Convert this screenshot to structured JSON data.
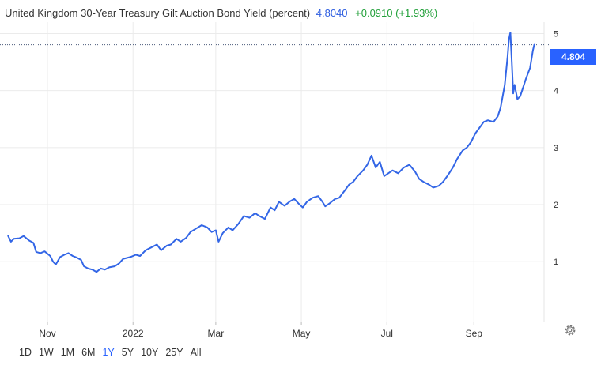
{
  "header": {
    "title": "United Kingdom 30-Year Treasury Gilt Auction Bond Yield (percent)",
    "last_value": "4.8040",
    "change": "+0.0910 (+1.93%)"
  },
  "price_tag": "4.804",
  "range_buttons": [
    "1D",
    "1W",
    "1M",
    "6M",
    "1Y",
    "5Y",
    "10Y",
    "25Y",
    "All"
  ],
  "active_range": "1Y",
  "colors": {
    "line": "#3366e6",
    "accent": "#2962ff",
    "change_positive": "#22a03a"
  },
  "icons": {
    "settings": "gear-icon"
  },
  "chart_data": {
    "type": "line",
    "title": "United Kingdom 30-Year Treasury Gilt Auction Bond Yield (percent)",
    "xlabel": "",
    "ylabel": "",
    "x_tick_labels": [
      "Nov",
      "2022",
      "Mar",
      "May",
      "Jul",
      "Sep"
    ],
    "y_tick_labels": [
      "1",
      "2",
      "3",
      "4",
      "5"
    ],
    "x_ticks": [
      "2021-11-01",
      "2022-01-01",
      "2022-03-01",
      "2022-05-01",
      "2022-07-01",
      "2022-09-01"
    ],
    "y_ticks": [
      1,
      2,
      3,
      4,
      5
    ],
    "xlim": [
      "2021-10-01",
      "2022-10-21"
    ],
    "ylim": [
      -0.05,
      5.2
    ],
    "grid": true,
    "last_value": 4.804,
    "series": [
      {
        "values": [
          [
            "2021-10-04",
            1.45
          ],
          [
            "2021-10-06",
            1.35
          ],
          [
            "2021-10-08",
            1.4
          ],
          [
            "2021-10-12",
            1.41
          ],
          [
            "2021-10-15",
            1.45
          ],
          [
            "2021-10-19",
            1.37
          ],
          [
            "2021-10-22",
            1.33
          ],
          [
            "2021-10-24",
            1.17
          ],
          [
            "2021-10-27",
            1.15
          ],
          [
            "2021-10-30",
            1.18
          ],
          [
            "2021-11-03",
            1.1
          ],
          [
            "2021-11-05",
            1.0
          ],
          [
            "2021-11-07",
            0.95
          ],
          [
            "2021-11-10",
            1.08
          ],
          [
            "2021-11-13",
            1.12
          ],
          [
            "2021-11-16",
            1.15
          ],
          [
            "2021-11-19",
            1.1
          ],
          [
            "2021-11-22",
            1.07
          ],
          [
            "2021-11-25",
            1.03
          ],
          [
            "2021-11-27",
            0.92
          ],
          [
            "2021-11-30",
            0.88
          ],
          [
            "2021-12-03",
            0.86
          ],
          [
            "2021-12-06",
            0.82
          ],
          [
            "2021-12-09",
            0.88
          ],
          [
            "2021-12-12",
            0.86
          ],
          [
            "2021-12-15",
            0.9
          ],
          [
            "2021-12-19",
            0.92
          ],
          [
            "2021-12-22",
            0.97
          ],
          [
            "2021-12-25",
            1.05
          ],
          [
            "2021-12-30",
            1.08
          ],
          [
            "2022-01-03",
            1.12
          ],
          [
            "2022-01-06",
            1.1
          ],
          [
            "2022-01-10",
            1.2
          ],
          [
            "2022-01-14",
            1.25
          ],
          [
            "2022-01-18",
            1.3
          ],
          [
            "2022-01-21",
            1.2
          ],
          [
            "2022-01-25",
            1.28
          ],
          [
            "2022-01-28",
            1.3
          ],
          [
            "2022-02-01",
            1.4
          ],
          [
            "2022-02-04",
            1.35
          ],
          [
            "2022-02-08",
            1.42
          ],
          [
            "2022-02-11",
            1.52
          ],
          [
            "2022-02-15",
            1.58
          ],
          [
            "2022-02-19",
            1.64
          ],
          [
            "2022-02-23",
            1.6
          ],
          [
            "2022-02-26",
            1.52
          ],
          [
            "2022-03-01",
            1.55
          ],
          [
            "2022-03-03",
            1.35
          ],
          [
            "2022-03-06",
            1.5
          ],
          [
            "2022-03-10",
            1.6
          ],
          [
            "2022-03-13",
            1.55
          ],
          [
            "2022-03-17",
            1.66
          ],
          [
            "2022-03-21",
            1.8
          ],
          [
            "2022-03-25",
            1.77
          ],
          [
            "2022-03-29",
            1.85
          ],
          [
            "2022-04-01",
            1.8
          ],
          [
            "2022-04-05",
            1.75
          ],
          [
            "2022-04-09",
            1.95
          ],
          [
            "2022-04-12",
            1.9
          ],
          [
            "2022-04-15",
            2.05
          ],
          [
            "2022-04-19",
            1.98
          ],
          [
            "2022-04-23",
            2.06
          ],
          [
            "2022-04-26",
            2.1
          ],
          [
            "2022-04-29",
            2.02
          ],
          [
            "2022-05-02",
            1.95
          ],
          [
            "2022-05-05",
            2.05
          ],
          [
            "2022-05-09",
            2.12
          ],
          [
            "2022-05-13",
            2.15
          ],
          [
            "2022-05-16",
            2.05
          ],
          [
            "2022-05-18",
            1.97
          ],
          [
            "2022-05-21",
            2.02
          ],
          [
            "2022-05-25",
            2.1
          ],
          [
            "2022-05-28",
            2.12
          ],
          [
            "2022-06-01",
            2.25
          ],
          [
            "2022-06-04",
            2.35
          ],
          [
            "2022-06-07",
            2.4
          ],
          [
            "2022-06-10",
            2.5
          ],
          [
            "2022-06-14",
            2.6
          ],
          [
            "2022-06-17",
            2.7
          ],
          [
            "2022-06-20",
            2.86
          ],
          [
            "2022-06-23",
            2.65
          ],
          [
            "2022-06-26",
            2.75
          ],
          [
            "2022-06-29",
            2.5
          ],
          [
            "2022-07-02",
            2.55
          ],
          [
            "2022-07-05",
            2.6
          ],
          [
            "2022-07-09",
            2.55
          ],
          [
            "2022-07-13",
            2.65
          ],
          [
            "2022-07-17",
            2.7
          ],
          [
            "2022-07-21",
            2.58
          ],
          [
            "2022-07-24",
            2.45
          ],
          [
            "2022-07-27",
            2.4
          ],
          [
            "2022-07-31",
            2.35
          ],
          [
            "2022-08-03",
            2.3
          ],
          [
            "2022-08-07",
            2.33
          ],
          [
            "2022-08-10",
            2.4
          ],
          [
            "2022-08-13",
            2.5
          ],
          [
            "2022-08-17",
            2.65
          ],
          [
            "2022-08-20",
            2.8
          ],
          [
            "2022-08-24",
            2.95
          ],
          [
            "2022-08-27",
            3.0
          ],
          [
            "2022-08-30",
            3.1
          ],
          [
            "2022-09-02",
            3.25
          ],
          [
            "2022-09-05",
            3.35
          ],
          [
            "2022-09-08",
            3.45
          ],
          [
            "2022-09-11",
            3.48
          ],
          [
            "2022-09-15",
            3.45
          ],
          [
            "2022-09-18",
            3.55
          ],
          [
            "2022-09-20",
            3.7
          ],
          [
            "2022-09-23",
            4.1
          ],
          [
            "2022-09-25",
            4.6
          ],
          [
            "2022-09-26",
            4.9
          ],
          [
            "2022-09-27",
            5.02
          ],
          [
            "2022-09-28",
            4.5
          ],
          [
            "2022-09-29",
            3.95
          ],
          [
            "2022-09-30",
            4.1
          ],
          [
            "2022-10-02",
            3.85
          ],
          [
            "2022-10-04",
            3.9
          ],
          [
            "2022-10-06",
            4.05
          ],
          [
            "2022-10-08",
            4.2
          ],
          [
            "2022-10-11",
            4.4
          ],
          [
            "2022-10-13",
            4.7
          ],
          [
            "2022-10-14",
            4.804
          ]
        ]
      }
    ]
  }
}
